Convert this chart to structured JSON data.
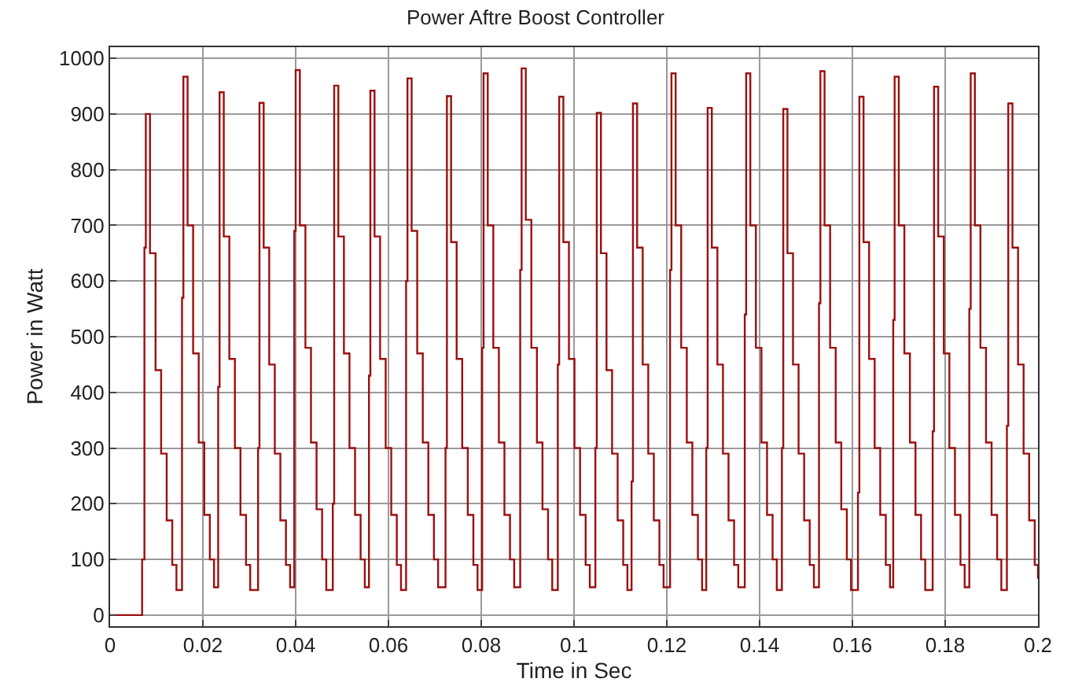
{
  "chart_data": {
    "type": "step",
    "title": "Power Aftre Boost Controller",
    "xlabel": "Time in Sec",
    "ylabel": "Power in Watt",
    "xlim": [
      0,
      0.2
    ],
    "xticks": [
      0,
      0.02,
      0.04,
      0.06,
      0.08,
      0.1,
      0.12,
      0.14,
      0.16,
      0.18,
      0.2
    ],
    "ylim": [
      -20,
      1020
    ],
    "yticks": [
      0,
      100,
      200,
      300,
      400,
      500,
      600,
      700,
      800,
      900,
      1000
    ],
    "grid": true,
    "marker": "none",
    "line_style": "solid",
    "series": [
      {
        "color": "#9b0f0f",
        "x": [
          0,
          0.0069,
          0.0074,
          0.0077,
          0.0086,
          0.0098,
          0.011,
          0.0122,
          0.0134,
          0.0143,
          0.0155,
          0.0158,
          0.0167,
          0.0179,
          0.0191,
          0.0203,
          0.0215,
          0.0224,
          0.0233,
          0.0236,
          0.0245,
          0.0257,
          0.0269,
          0.0281,
          0.0293,
          0.0302,
          0.0319,
          0.0322,
          0.0331,
          0.0343,
          0.0355,
          0.0367,
          0.0379,
          0.0388,
          0.0397,
          0.04,
          0.0409,
          0.0421,
          0.0433,
          0.0445,
          0.0457,
          0.0466,
          0.048,
          0.0483,
          0.0492,
          0.0504,
          0.0516,
          0.0528,
          0.054,
          0.0549,
          0.0558,
          0.0561,
          0.057,
          0.0582,
          0.0594,
          0.0606,
          0.0618,
          0.0627,
          0.0638,
          0.0641,
          0.065,
          0.0662,
          0.0674,
          0.0686,
          0.0698,
          0.0707,
          0.0723,
          0.0726,
          0.0735,
          0.0747,
          0.0759,
          0.0771,
          0.0783,
          0.0792,
          0.0802,
          0.0805,
          0.0814,
          0.0826,
          0.0838,
          0.085,
          0.0862,
          0.0871,
          0.0884,
          0.0887,
          0.0896,
          0.0908,
          0.092,
          0.0932,
          0.0944,
          0.0953,
          0.0965,
          0.0968,
          0.0977,
          0.0989,
          0.1001,
          0.1013,
          0.1025,
          0.1034,
          0.1046,
          0.1049,
          0.1058,
          0.107,
          0.1082,
          0.1094,
          0.1106,
          0.1115,
          0.1124,
          0.1127,
          0.1136,
          0.1148,
          0.116,
          0.1172,
          0.1184,
          0.1193,
          0.1207,
          0.121,
          0.1219,
          0.1231,
          0.1243,
          0.1255,
          0.1267,
          0.1276,
          0.1285,
          0.1288,
          0.1297,
          0.1309,
          0.1321,
          0.1333,
          0.1345,
          0.1354,
          0.1368,
          0.1371,
          0.138,
          0.1392,
          0.1404,
          0.1416,
          0.1428,
          0.1437,
          0.1448,
          0.1451,
          0.146,
          0.1472,
          0.1484,
          0.1496,
          0.1508,
          0.1517,
          0.1528,
          0.1531,
          0.154,
          0.1552,
          0.1564,
          0.1576,
          0.1588,
          0.1597,
          0.1612,
          0.1615,
          0.1624,
          0.1636,
          0.1648,
          0.166,
          0.1672,
          0.1681,
          0.1688,
          0.1691,
          0.17,
          0.1712,
          0.1724,
          0.1736,
          0.1748,
          0.1757,
          0.1773,
          0.1776,
          0.1785,
          0.1797,
          0.1809,
          0.1821,
          0.1833,
          0.1842,
          0.1852,
          0.1855,
          0.1864,
          0.1876,
          0.1888,
          0.19,
          0.1912,
          0.1921,
          0.1933,
          0.1936,
          0.1945,
          0.1957,
          0.1969,
          0.1981,
          0.1993,
          0.2
        ],
        "values": [
          0,
          100,
          660,
          900,
          650,
          440,
          290,
          170,
          90,
          45,
          570,
          967,
          700,
          470,
          310,
          180,
          100,
          50,
          410,
          939,
          680,
          460,
          300,
          180,
          90,
          45,
          300,
          920,
          660,
          450,
          290,
          170,
          90,
          50,
          690,
          979,
          700,
          480,
          310,
          190,
          100,
          45,
          200,
          951,
          680,
          470,
          300,
          180,
          100,
          50,
          430,
          942,
          680,
          460,
          300,
          180,
          90,
          45,
          600,
          964,
          690,
          470,
          310,
          180,
          100,
          50,
          300,
          932,
          670,
          460,
          300,
          180,
          90,
          45,
          480,
          973,
          700,
          480,
          310,
          180,
          100,
          50,
          620,
          982,
          710,
          480,
          310,
          190,
          100,
          45,
          450,
          931,
          670,
          460,
          300,
          180,
          90,
          50,
          300,
          902,
          650,
          440,
          290,
          170,
          90,
          45,
          240,
          919,
          660,
          450,
          290,
          170,
          90,
          50,
          620,
          973,
          700,
          480,
          310,
          180,
          100,
          45,
          300,
          911,
          660,
          450,
          290,
          170,
          90,
          50,
          540,
          973,
          700,
          480,
          310,
          180,
          100,
          45,
          300,
          909,
          650,
          450,
          290,
          170,
          90,
          50,
          560,
          977,
          700,
          480,
          310,
          190,
          100,
          45,
          220,
          931,
          670,
          460,
          300,
          180,
          90,
          50,
          530,
          967,
          700,
          470,
          310,
          180,
          100,
          45,
          330,
          949,
          680,
          470,
          300,
          180,
          90,
          50,
          550,
          973,
          700,
          480,
          310,
          180,
          100,
          45,
          340,
          919,
          660,
          450,
          290,
          170,
          90,
          65
        ]
      }
    ]
  }
}
